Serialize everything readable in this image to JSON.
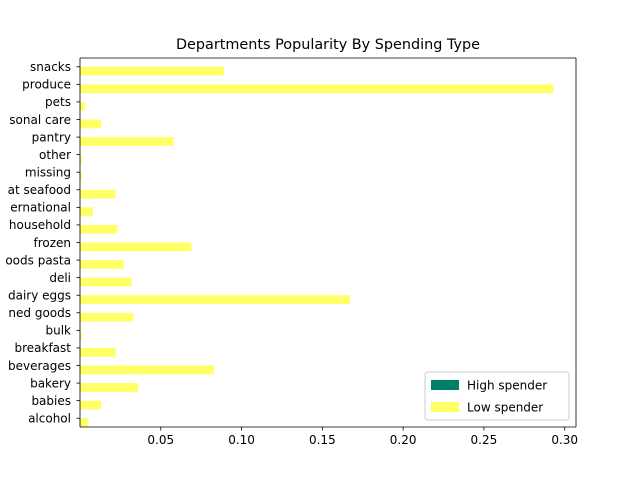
{
  "chart_data": {
    "type": "bar",
    "orientation": "horizontal",
    "title": "Departments Popularity By Spending Type",
    "xlabel": "",
    "ylabel": "",
    "xlim": [
      0,
      0.307
    ],
    "xticks": [
      0.05,
      0.1,
      0.15,
      0.2,
      0.25,
      0.3
    ],
    "xtick_labels": [
      "0.05",
      "0.10",
      "0.15",
      "0.20",
      "0.25",
      "0.30"
    ],
    "grid": false,
    "legend_position": "bottom-right",
    "categories": [
      "alcohol",
      "babies",
      "bakery",
      "beverages",
      "breakfast",
      "bulk",
      "canned goods",
      "dairy eggs",
      "deli",
      "dry goods pasta",
      "frozen",
      "household",
      "international",
      "meat seafood",
      "missing",
      "other",
      "pantry",
      "personal care",
      "pets",
      "produce",
      "snacks"
    ],
    "tick_labels": [
      "alcohol",
      "babies",
      "bakery",
      "beverages",
      "breakfast",
      "bulk",
      "ned goods",
      "dairy eggs",
      "deli",
      "oods pasta",
      "frozen",
      "household",
      "ernational",
      "at seafood",
      "missing",
      "other",
      "pantry",
      "sonal care",
      "pets",
      "produce",
      "snacks"
    ],
    "series": [
      {
        "name": "High spender",
        "color": "#008066",
        "values": [
          0.0,
          0.0,
          0.0,
          0.0,
          0.0,
          0.0,
          0.0,
          0.0,
          0.0,
          0.0,
          0.0,
          0.0,
          0.0,
          0.0,
          0.0,
          0.0,
          0.0,
          0.0,
          0.0,
          0.0,
          0.0
        ]
      },
      {
        "name": "Low spender",
        "color": "#ffff66",
        "values": [
          0.005,
          0.013,
          0.036,
          0.083,
          0.022,
          0.001,
          0.033,
          0.167,
          0.032,
          0.027,
          0.069,
          0.023,
          0.008,
          0.022,
          0.001,
          0.001,
          0.058,
          0.013,
          0.003,
          0.293,
          0.089
        ]
      }
    ]
  }
}
